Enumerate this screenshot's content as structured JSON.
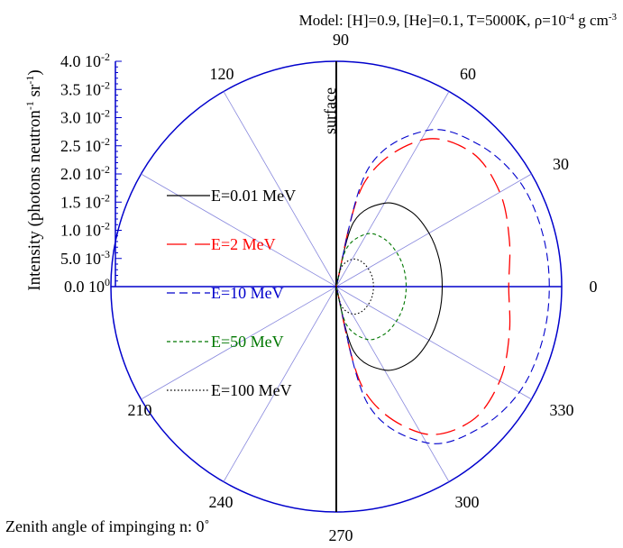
{
  "chart_data": {
    "type": "polar",
    "title": "Model: [H]=0.9,  [He]=0.1, T=5000K, ρ=10⁻⁴ g cm⁻³",
    "ylabel": "Intensity (photons neutron⁻¹ sr⁻¹)",
    "footer": "Zenith angle of impinging n: 0˚",
    "surface_label": "surface",
    "angle_unit": "degrees",
    "radial_range": [
      0,
      0.04
    ],
    "angle_labels": [
      "90",
      "60",
      "30",
      "0",
      "330",
      "300",
      "270",
      "240",
      "210",
      "120"
    ],
    "radial_ticks": [
      {
        "value": 0.0,
        "mantissa": "0.0",
        "exp": "0"
      },
      {
        "value": 0.005,
        "mantissa": "5.0",
        "exp": "-3"
      },
      {
        "value": 0.01,
        "mantissa": "1.0",
        "exp": "-2"
      },
      {
        "value": 0.015,
        "mantissa": "1.5",
        "exp": "-2"
      },
      {
        "value": 0.02,
        "mantissa": "2.0",
        "exp": "-2"
      },
      {
        "value": 0.025,
        "mantissa": "2.5",
        "exp": "-2"
      },
      {
        "value": 0.03,
        "mantissa": "3.0",
        "exp": "-2"
      },
      {
        "value": 0.035,
        "mantissa": "3.5",
        "exp": "-2"
      },
      {
        "value": 0.04,
        "mantissa": "4.0",
        "exp": "-2"
      }
    ],
    "series": [
      {
        "name": "E=0.01 MeV",
        "color": "#000000",
        "dash": "solid",
        "angles": [
          -90,
          -75,
          -60,
          -45,
          -30,
          -15,
          0,
          15,
          30,
          45,
          60,
          75,
          90
        ],
        "values": [
          0,
          0.0118,
          0.0171,
          0.0188,
          0.019,
          0.0189,
          0.0188,
          0.0189,
          0.019,
          0.0188,
          0.0171,
          0.0118,
          0
        ]
      },
      {
        "name": "E=2 MeV",
        "color": "#ff0000",
        "dash": "long-dash",
        "angles": [
          -90,
          -75,
          -60,
          -45,
          -30,
          -15,
          0,
          15,
          30,
          45,
          60,
          75,
          90
        ],
        "values": [
          0,
          0.019,
          0.03,
          0.0338,
          0.0335,
          0.0318,
          0.0306,
          0.0318,
          0.0335,
          0.0338,
          0.03,
          0.019,
          0
        ]
      },
      {
        "name": "E=10 MeV",
        "color": "#0000cc",
        "dash": "dash",
        "angles": [
          -90,
          -75,
          -60,
          -45,
          -30,
          -15,
          0,
          15,
          30,
          45,
          60,
          75,
          90
        ],
        "values": [
          0,
          0.0215,
          0.032,
          0.0357,
          0.0375,
          0.0378,
          0.0378,
          0.0378,
          0.0375,
          0.0357,
          0.032,
          0.0215,
          0
        ]
      },
      {
        "name": "E=50 MeV",
        "color": "#007700",
        "dash": "short-dash",
        "angles": [
          -90,
          -75,
          -60,
          -45,
          -30,
          -15,
          0,
          15,
          30,
          45,
          60,
          75,
          90
        ],
        "values": [
          0,
          0.007,
          0.0108,
          0.012,
          0.0123,
          0.0124,
          0.0124,
          0.0124,
          0.0123,
          0.012,
          0.0108,
          0.007,
          0
        ]
      },
      {
        "name": "E=100 MeV",
        "color": "#000000",
        "dash": "dot",
        "angles": [
          -90,
          -75,
          -60,
          -45,
          -30,
          -15,
          0,
          15,
          30,
          45,
          60,
          75,
          90
        ],
        "values": [
          0,
          0.0036,
          0.0056,
          0.0063,
          0.0065,
          0.0066,
          0.0066,
          0.0066,
          0.0065,
          0.0063,
          0.0056,
          0.0036,
          0
        ]
      }
    ]
  }
}
